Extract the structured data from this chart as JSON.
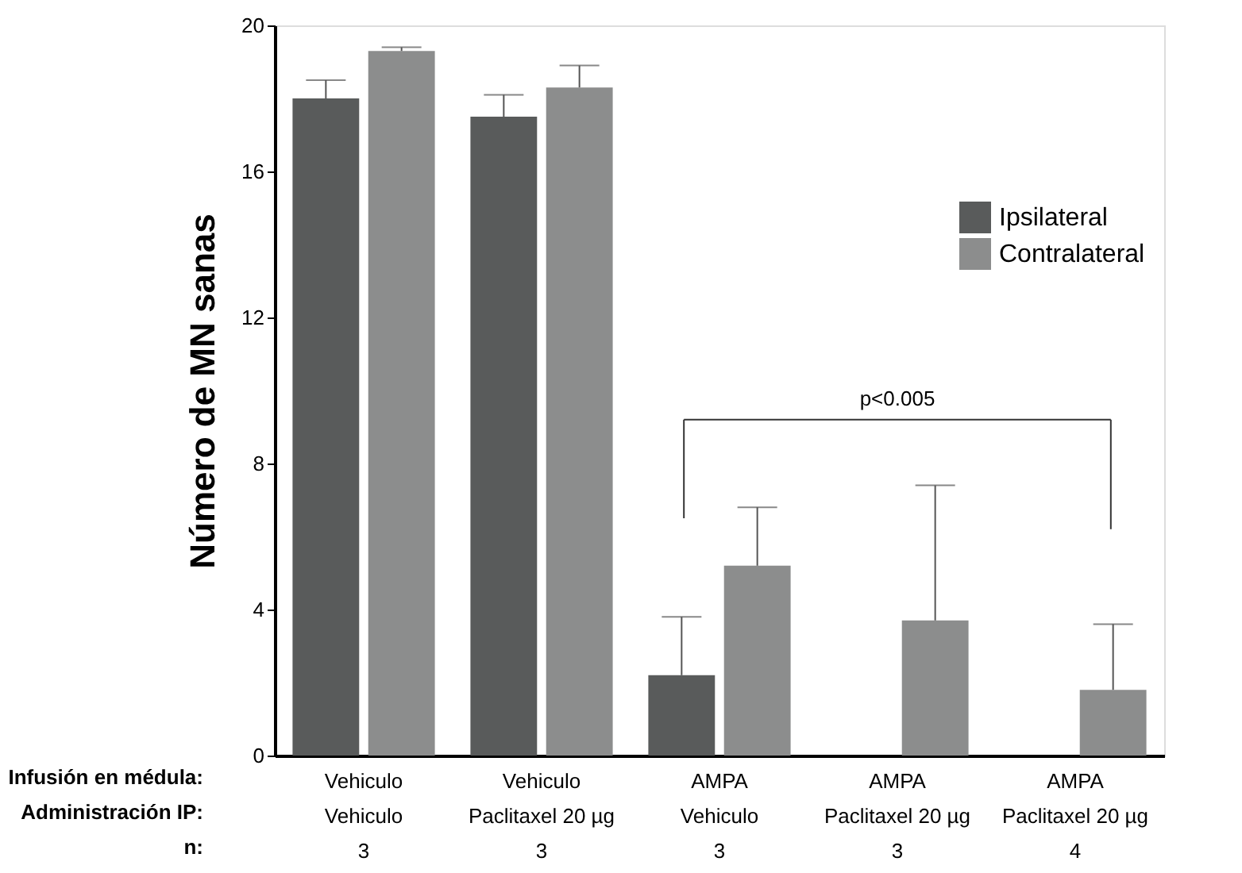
{
  "chart_data": {
    "type": "bar",
    "ylabel": "Número de MN sanas",
    "xlabel": "Infusión en médula:\nAdministración IP:\nn:",
    "categories": [
      "Vehiculo\nVehiculo\n3",
      "Vehiculo\nPaclitaxel 20 µg\n3",
      "AMPA\nVehiculo\n3",
      "AMPA\nPaclitaxel 20 µg\n3",
      "AMPA\nPaclitaxel 20 µg\n4"
    ],
    "series": [
      {
        "name": "Ipsilateral",
        "color": "#595b5b",
        "values": [
          18.0,
          17.5,
          2.2,
          0,
          0
        ],
        "errors": [
          [
            18.0,
            18.5
          ],
          [
            17.5,
            18.1
          ],
          [
            2.2,
            3.8
          ],
          null,
          null
        ]
      },
      {
        "name": "Contralateral",
        "color": "#8c8d8d",
        "values": [
          19.3,
          18.3,
          5.2,
          3.7,
          1.8
        ],
        "errors": [
          [
            19.3,
            19.4
          ],
          [
            18.3,
            18.9
          ],
          [
            5.2,
            6.8
          ],
          [
            3.7,
            7.4
          ],
          [
            1.8,
            3.6
          ]
        ]
      }
    ],
    "ylim": [
      0,
      20
    ],
    "yticks": [
      0,
      4,
      8,
      12,
      16,
      20
    ],
    "grid": false,
    "legend": "top right",
    "annotations": [
      "p<0.005"
    ]
  }
}
